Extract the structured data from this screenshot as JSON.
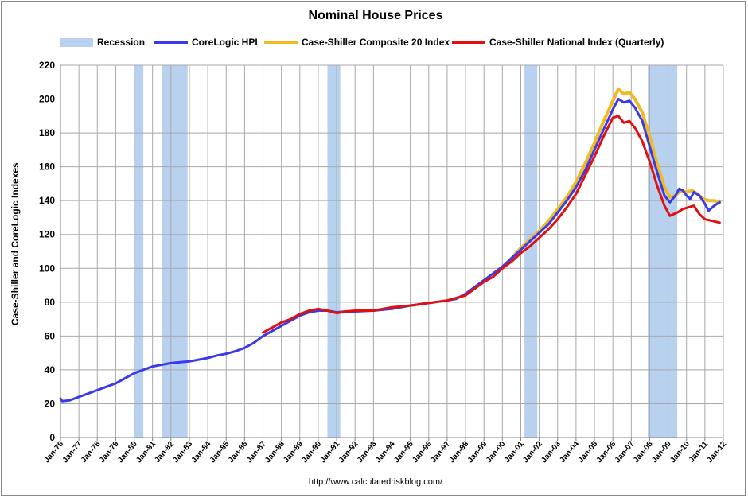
{
  "chart_data": {
    "type": "line",
    "title": "Nominal House Prices",
    "ylabel": "Case-Shiller and CoreLogic Indexes",
    "xlabel": "",
    "ylim": [
      0,
      220
    ],
    "yticks": [
      0,
      20,
      40,
      60,
      80,
      100,
      120,
      140,
      160,
      180,
      200,
      220
    ],
    "xlim": [
      1976,
      2012
    ],
    "xticks": [
      "Jan-76",
      "Jan-77",
      "Jan-78",
      "Jan-79",
      "Jan-80",
      "Jan-81",
      "Jan-82",
      "Jan-83",
      "Jan-84",
      "Jan-85",
      "Jan-86",
      "Jan-87",
      "Jan-88",
      "Jan-89",
      "Jan-90",
      "Jan-91",
      "Jan-92",
      "Jan-93",
      "Jan-94",
      "Jan-95",
      "Jan-96",
      "Jan-97",
      "Jan-98",
      "Jan-99",
      "Jan-00",
      "Jan-01",
      "Jan-02",
      "Jan-03",
      "Jan-04",
      "Jan-05",
      "Jan-06",
      "Jan-07",
      "Jan-08",
      "Jan-09",
      "Jan-10",
      "Jan-11",
      "Jan-12"
    ],
    "grid": true,
    "legend_position": "top",
    "source": "http://www.calculatedriskblog.com/",
    "recession": {
      "name": "Recession",
      "color": "#b8d1ee",
      "periods": [
        [
          1980.0,
          1980.5
        ],
        [
          1981.5,
          1982.9
        ],
        [
          1990.5,
          1991.2
        ],
        [
          2001.2,
          2001.9
        ],
        [
          2007.9,
          2009.5
        ]
      ]
    },
    "series": [
      {
        "name": "CoreLogic HPI",
        "color": "#3a3ae8",
        "points": [
          [
            1976.0,
            23
          ],
          [
            1976.1,
            21.5
          ],
          [
            1976.5,
            22
          ],
          [
            1977,
            24
          ],
          [
            1977.5,
            26
          ],
          [
            1978,
            28
          ],
          [
            1978.5,
            30
          ],
          [
            1979,
            32
          ],
          [
            1979.5,
            35
          ],
          [
            1980,
            38
          ],
          [
            1980.5,
            40
          ],
          [
            1981,
            42
          ],
          [
            1981.5,
            43
          ],
          [
            1982,
            44
          ],
          [
            1982.5,
            44.5
          ],
          [
            1983,
            45
          ],
          [
            1983.5,
            46
          ],
          [
            1984,
            47
          ],
          [
            1984.5,
            48.5
          ],
          [
            1985,
            49.5
          ],
          [
            1985.5,
            51
          ],
          [
            1986,
            53
          ],
          [
            1986.5,
            56
          ],
          [
            1987,
            60
          ],
          [
            1987.5,
            63
          ],
          [
            1988,
            66
          ],
          [
            1988.5,
            69
          ],
          [
            1989,
            72
          ],
          [
            1989.5,
            74
          ],
          [
            1990,
            75
          ],
          [
            1990.5,
            75
          ],
          [
            1991,
            74
          ],
          [
            1991.5,
            74.5
          ],
          [
            1992,
            74.5
          ],
          [
            1993,
            75
          ],
          [
            1994,
            76
          ],
          [
            1995,
            78
          ],
          [
            1996,
            79.5
          ],
          [
            1997,
            81
          ],
          [
            1997.5,
            82
          ],
          [
            1998,
            85
          ],
          [
            1998.5,
            89
          ],
          [
            1999,
            93
          ],
          [
            1999.5,
            97
          ],
          [
            2000,
            101
          ],
          [
            2000.5,
            106
          ],
          [
            2001,
            111
          ],
          [
            2001.5,
            116
          ],
          [
            2002,
            121
          ],
          [
            2002.5,
            126
          ],
          [
            2003,
            133
          ],
          [
            2003.5,
            140
          ],
          [
            2004,
            148
          ],
          [
            2004.5,
            158
          ],
          [
            2005,
            170
          ],
          [
            2005.5,
            182
          ],
          [
            2006,
            194
          ],
          [
            2006.3,
            200
          ],
          [
            2006.6,
            198
          ],
          [
            2006.9,
            199
          ],
          [
            2007.2,
            195
          ],
          [
            2007.6,
            187
          ],
          [
            2008,
            172
          ],
          [
            2008.4,
            157
          ],
          [
            2008.8,
            143
          ],
          [
            2009.1,
            139
          ],
          [
            2009.4,
            143
          ],
          [
            2009.6,
            147
          ],
          [
            2009.8,
            146
          ],
          [
            2010,
            143
          ],
          [
            2010.2,
            141
          ],
          [
            2010.4,
            145
          ],
          [
            2010.7,
            143
          ],
          [
            2011,
            138
          ],
          [
            2011.2,
            134
          ],
          [
            2011.5,
            137
          ],
          [
            2011.8,
            139
          ]
        ]
      },
      {
        "name": "Case-Shiller Composite 20 Index",
        "color": "#f0bb22",
        "points": [
          [
            2000,
            100
          ],
          [
            2000.5,
            106
          ],
          [
            2001,
            112
          ],
          [
            2001.5,
            117
          ],
          [
            2002,
            122
          ],
          [
            2002.5,
            128
          ],
          [
            2003,
            135
          ],
          [
            2003.5,
            142
          ],
          [
            2004,
            151
          ],
          [
            2004.5,
            162
          ],
          [
            2005,
            174
          ],
          [
            2005.5,
            187
          ],
          [
            2006,
            199
          ],
          [
            2006.3,
            206
          ],
          [
            2006.6,
            203
          ],
          [
            2006.9,
            204
          ],
          [
            2007.2,
            200
          ],
          [
            2007.6,
            192
          ],
          [
            2008,
            178
          ],
          [
            2008.4,
            162
          ],
          [
            2008.8,
            148
          ],
          [
            2009.1,
            142
          ],
          [
            2009.4,
            143
          ],
          [
            2009.7,
            146
          ],
          [
            2010,
            145
          ],
          [
            2010.3,
            146
          ],
          [
            2010.6,
            144
          ],
          [
            2010.9,
            141
          ],
          [
            2011.2,
            140
          ],
          [
            2011.5,
            140
          ],
          [
            2011.8,
            139
          ]
        ]
      },
      {
        "name": "Case-Shiller National Index (Quarterly)",
        "color": "#e01010",
        "points": [
          [
            1987,
            62
          ],
          [
            1987.5,
            65
          ],
          [
            1988,
            68
          ],
          [
            1988.5,
            70
          ],
          [
            1989,
            73
          ],
          [
            1989.5,
            75
          ],
          [
            1990,
            76
          ],
          [
            1990.5,
            75
          ],
          [
            1991,
            73.5
          ],
          [
            1991.5,
            74.5
          ],
          [
            1992,
            75
          ],
          [
            1993,
            75
          ],
          [
            1994,
            77
          ],
          [
            1995,
            78
          ],
          [
            1996,
            79.5
          ],
          [
            1997,
            81
          ],
          [
            1998,
            84
          ],
          [
            1998.5,
            88
          ],
          [
            1999,
            92
          ],
          [
            1999.5,
            95
          ],
          [
            2000,
            100
          ],
          [
            2000.5,
            104
          ],
          [
            2001,
            109
          ],
          [
            2001.5,
            113
          ],
          [
            2002,
            118
          ],
          [
            2002.5,
            123
          ],
          [
            2003,
            129
          ],
          [
            2003.5,
            136
          ],
          [
            2004,
            144
          ],
          [
            2004.5,
            155
          ],
          [
            2005,
            166
          ],
          [
            2005.5,
            178
          ],
          [
            2006,
            189
          ],
          [
            2006.3,
            190
          ],
          [
            2006.6,
            186
          ],
          [
            2006.9,
            187
          ],
          [
            2007.2,
            183
          ],
          [
            2007.6,
            175
          ],
          [
            2008,
            163
          ],
          [
            2008.4,
            149
          ],
          [
            2008.8,
            137
          ],
          [
            2009.1,
            131
          ],
          [
            2009.5,
            133
          ],
          [
            2009.8,
            135
          ],
          [
            2010.1,
            136
          ],
          [
            2010.4,
            137
          ],
          [
            2010.7,
            132
          ],
          [
            2011,
            129
          ],
          [
            2011.4,
            128
          ],
          [
            2011.8,
            127
          ]
        ]
      }
    ]
  }
}
